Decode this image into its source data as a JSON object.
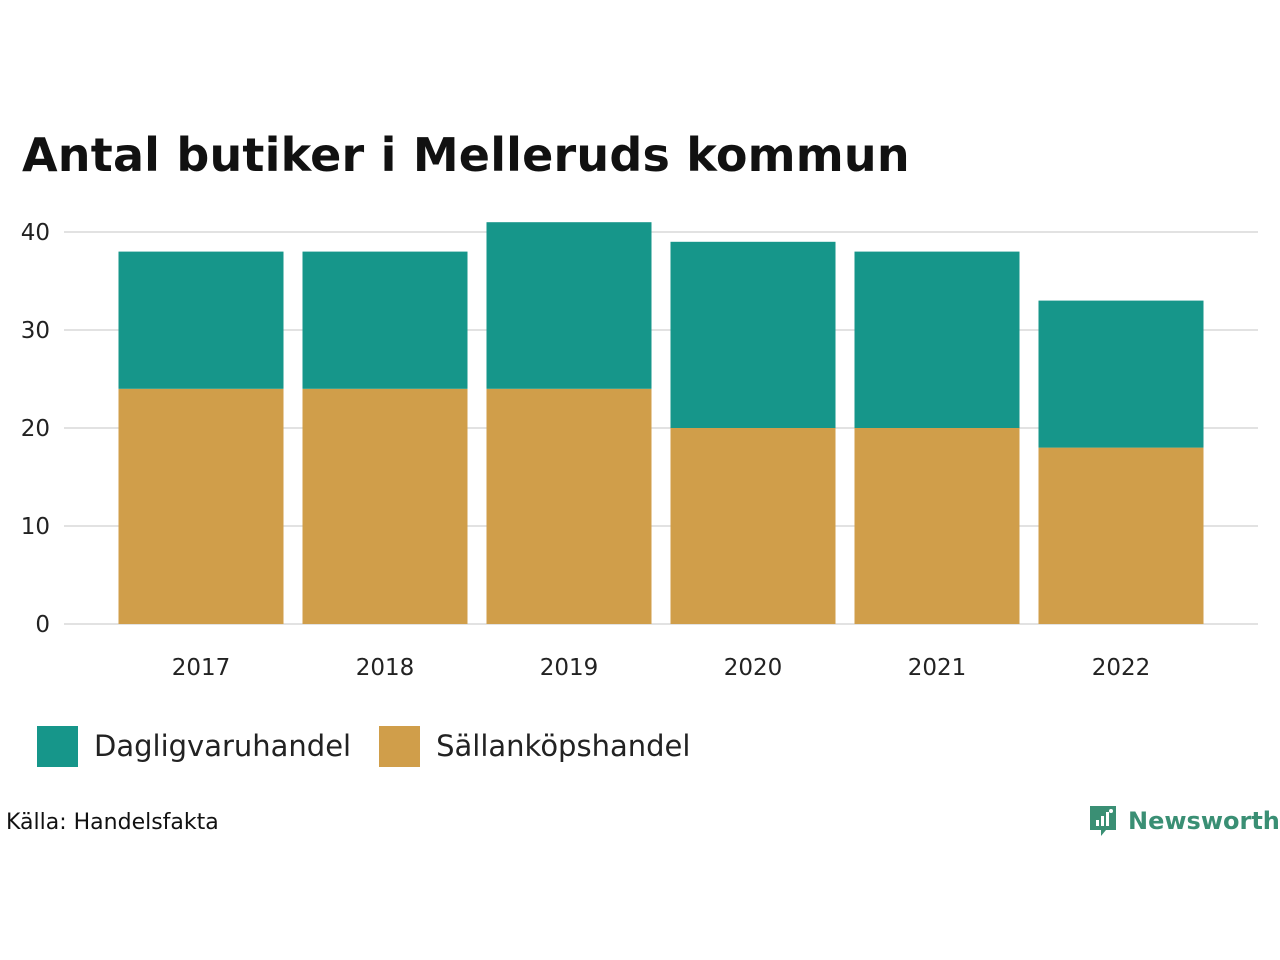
{
  "colors": {
    "daglig": "#16968a",
    "sallan": "#d09e4a",
    "grid": "#e2e2e2",
    "brand": "#3a8f74"
  },
  "chart_data": {
    "type": "bar",
    "stacked": true,
    "title": "Antal butiker i Melleruds kommun",
    "categories": [
      "2017",
      "2018",
      "2019",
      "2020",
      "2021",
      "2022"
    ],
    "series": [
      {
        "name": "Sällanköpshandel",
        "color": "#d09e4a",
        "values": [
          24,
          24,
          24,
          20,
          20,
          18
        ]
      },
      {
        "name": "Dagligvaruhandel",
        "color": "#16968a",
        "values": [
          14,
          14,
          17,
          19,
          18,
          15
        ]
      }
    ],
    "yticks": [
      0,
      10,
      20,
      30,
      40
    ],
    "ylim": [
      0,
      41
    ],
    "grid": true,
    "legend": "bottom-left"
  },
  "legend": {
    "items": [
      {
        "label": "Dagligvaruhandel"
      },
      {
        "label": "Sällanköpshandel"
      }
    ]
  },
  "source": "Källa: Handelsfakta",
  "brand": {
    "name": "Newsworthy",
    "icon": "newsworthy-logo-icon"
  }
}
